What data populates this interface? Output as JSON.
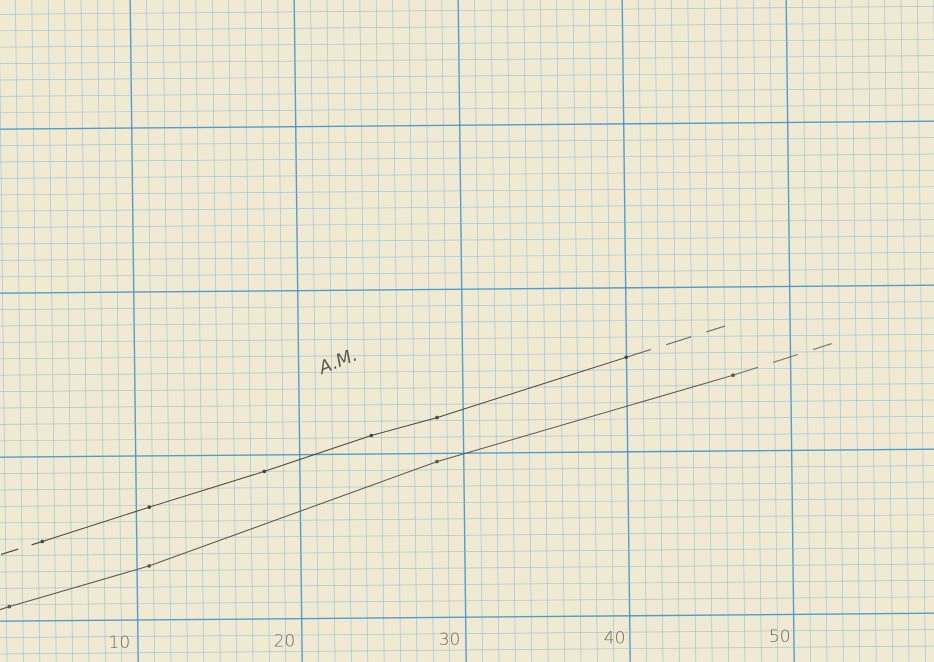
{
  "chart_data": {
    "type": "line",
    "title": "",
    "xlabel": "",
    "ylabel": "",
    "x_tick_labels": [
      "10",
      "20",
      "30",
      "40",
      "50"
    ],
    "x_ticks": [
      10,
      20,
      30,
      40,
      50
    ],
    "xlim": [
      3.5,
      58.5
    ],
    "grid": true,
    "annotations": [
      {
        "text": "A.M."
      }
    ],
    "series": [
      {
        "style": "solid-dashed",
        "points": [
          [
            5,
            8.5
          ],
          [
            11.5,
            10.6
          ],
          [
            18.5,
            12.8
          ],
          [
            25,
            15
          ],
          [
            29,
            16.1
          ],
          [
            40.5,
            19.8
          ]
        ],
        "color": "#4a4640"
      },
      {
        "style": "solid-dashed",
        "points": [
          [
            3,
            4.5
          ],
          [
            11.5,
            7
          ],
          [
            29,
            13.4
          ],
          [
            47,
            18.7
          ]
        ],
        "color": "#5a5650"
      }
    ],
    "colors": {
      "paper": "#f1ead2",
      "grid_minor": "#7fb4d8",
      "grid_major": "#3a8fcc",
      "pencil": "#4a4640"
    }
  }
}
